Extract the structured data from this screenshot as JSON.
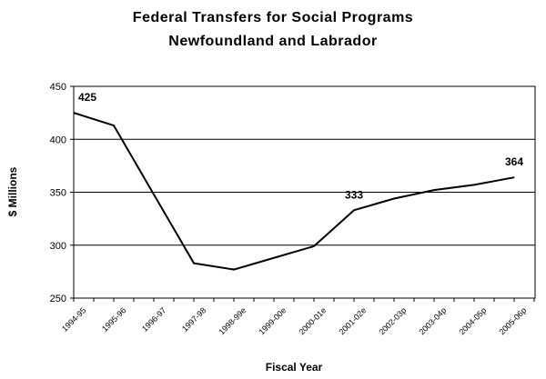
{
  "chart_data": {
    "type": "line",
    "title": "Federal Transfers for Social Programs",
    "subtitle": "Newfoundland and Labrador",
    "xlabel": "Fiscal Year",
    "ylabel": "$ Millions",
    "ylim": [
      250,
      450
    ],
    "yticks": [
      "250",
      "300",
      "350",
      "400",
      "450"
    ],
    "grid": true,
    "categories": [
      "1994-95",
      "1995-96",
      "1996-97",
      "1997-98",
      "1998-99e",
      "1999-00e",
      "2000-01e",
      "2001-02e",
      "2002-03p",
      "2003-04p",
      "2004-05p",
      "2005-06p"
    ],
    "series": [
      {
        "name": "Federal Transfers",
        "values": [
          425,
          413,
          348,
          283,
          277,
          288,
          299,
          333,
          344,
          352,
          357,
          364
        ]
      }
    ],
    "annotations": [
      {
        "index": 0,
        "text": "425"
      },
      {
        "index": 7,
        "text": "333"
      },
      {
        "index": 11,
        "text": "364"
      }
    ]
  }
}
